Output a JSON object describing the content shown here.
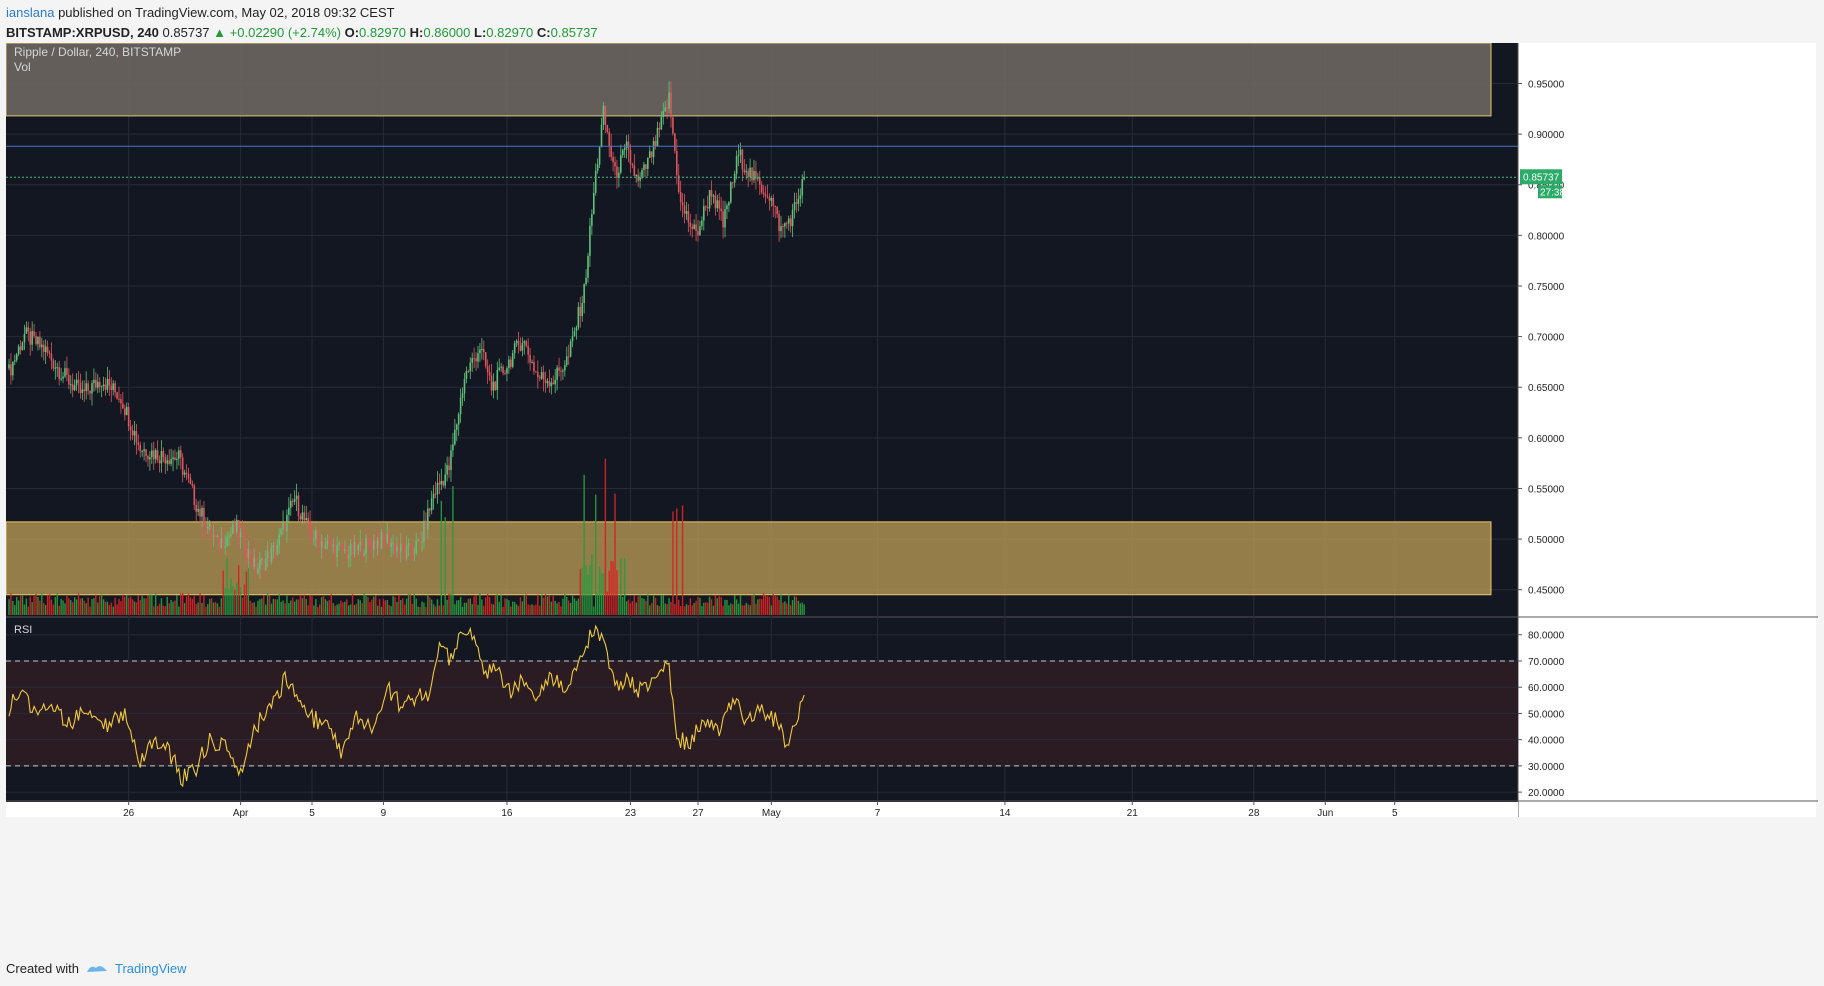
{
  "publisher": {
    "user": "ianslana",
    "text": "published on TradingView.com, May 02, 2018 09:32 CEST"
  },
  "ticker_line": {
    "symbol": "BITSTAMP:XRPUSD, 240",
    "last": "0.85737",
    "change": "+0.02290 (+2.74%)",
    "open_label": "O:",
    "open": "0.82970",
    "high_label": "H:",
    "high": "0.86000",
    "low_label": "L:",
    "low": "0.82970",
    "close_label": "C:",
    "close": "0.85737"
  },
  "chart_data": [
    {
      "type": "candlestick",
      "title": "Ripple / Dollar, 240, BITSTAMP",
      "subtitle": "Vol",
      "x_tick_labels": [
        "26",
        "Apr",
        "5",
        "9",
        "16",
        "23",
        "27",
        "May",
        "7",
        "14",
        "21",
        "28",
        "Jun",
        "5"
      ],
      "y_tick_labels": [
        "0.95000",
        "0.90000",
        "0.85000",
        "0.80000",
        "0.75000",
        "0.70000",
        "0.65000",
        "0.60000",
        "0.55000",
        "0.50000",
        "0.45000"
      ],
      "ylim": [
        0.425,
        0.99
      ],
      "last_price_label": "0.85737",
      "countdown_label": "27:38",
      "horizontal_line": 0.888,
      "zones": [
        {
          "name": "resistance",
          "from": 0.918,
          "to": 0.99,
          "color": "#6a6560"
        },
        {
          "name": "support",
          "from": 0.445,
          "to": 0.517,
          "color": "#b89a55"
        }
      ],
      "price_anchors": [
        [
          0,
          0.665
        ],
        [
          8,
          0.702
        ],
        [
          18,
          0.688
        ],
        [
          28,
          0.662
        ],
        [
          38,
          0.643
        ],
        [
          48,
          0.658
        ],
        [
          58,
          0.64
        ],
        [
          68,
          0.59
        ],
        [
          78,
          0.583
        ],
        [
          88,
          0.58
        ],
        [
          98,
          0.53
        ],
        [
          108,
          0.495
        ],
        [
          118,
          0.51
        ],
        [
          128,
          0.47
        ],
        [
          138,
          0.49
        ],
        [
          148,
          0.54
        ],
        [
          156,
          0.505
        ],
        [
          166,
          0.493
        ],
        [
          176,
          0.486
        ],
        [
          186,
          0.495
        ],
        [
          196,
          0.5
        ],
        [
          205,
          0.485
        ],
        [
          213,
          0.495
        ],
        [
          220,
          0.545
        ],
        [
          228,
          0.57
        ],
        [
          236,
          0.66
        ],
        [
          244,
          0.69
        ],
        [
          250,
          0.65
        ],
        [
          258,
          0.672
        ],
        [
          266,
          0.698
        ],
        [
          274,
          0.66
        ],
        [
          282,
          0.657
        ],
        [
          290,
          0.68
        ],
        [
          298,
          0.745
        ],
        [
          304,
          0.86
        ],
        [
          308,
          0.92
        ],
        [
          314,
          0.86
        ],
        [
          320,
          0.885
        ],
        [
          326,
          0.85
        ],
        [
          334,
          0.885
        ],
        [
          342,
          0.935
        ],
        [
          348,
          0.83
        ],
        [
          356,
          0.8
        ],
        [
          364,
          0.845
        ],
        [
          370,
          0.81
        ],
        [
          378,
          0.88
        ],
        [
          386,
          0.855
        ],
        [
          394,
          0.84
        ],
        [
          400,
          0.805
        ],
        [
          406,
          0.82
        ],
        [
          412,
          0.857
        ]
      ],
      "rsi": {
        "label": "RSI",
        "levels": [
          30,
          70
        ],
        "y_tick_labels": [
          "80.0000",
          "70.0000",
          "60.0000",
          "50.0000",
          "40.0000",
          "30.0000",
          "20.0000"
        ],
        "ylim": [
          17,
          86
        ],
        "anchors": [
          [
            0,
            52
          ],
          [
            6,
            58
          ],
          [
            14,
            50
          ],
          [
            22,
            54
          ],
          [
            30,
            45
          ],
          [
            40,
            52
          ],
          [
            50,
            46
          ],
          [
            60,
            50
          ],
          [
            68,
            30
          ],
          [
            75,
            40
          ],
          [
            82,
            37
          ],
          [
            90,
            25
          ],
          [
            96,
            28
          ],
          [
            104,
            40
          ],
          [
            112,
            38
          ],
          [
            120,
            27
          ],
          [
            128,
            45
          ],
          [
            136,
            53
          ],
          [
            144,
            64
          ],
          [
            150,
            52
          ],
          [
            158,
            48
          ],
          [
            166,
            46
          ],
          [
            172,
            35
          ],
          [
            180,
            50
          ],
          [
            188,
            45
          ],
          [
            196,
            60
          ],
          [
            204,
            52
          ],
          [
            212,
            57
          ],
          [
            218,
            55
          ],
          [
            223,
            78
          ],
          [
            228,
            70
          ],
          [
            234,
            82
          ],
          [
            240,
            79
          ],
          [
            246,
            65
          ],
          [
            252,
            66
          ],
          [
            260,
            58
          ],
          [
            266,
            62
          ],
          [
            272,
            56
          ],
          [
            280,
            65
          ],
          [
            288,
            60
          ],
          [
            296,
            72
          ],
          [
            303,
            83
          ],
          [
            309,
            76
          ],
          [
            314,
            61
          ],
          [
            320,
            63
          ],
          [
            326,
            58
          ],
          [
            334,
            62
          ],
          [
            342,
            68
          ],
          [
            346,
            41
          ],
          [
            352,
            39
          ],
          [
            360,
            46
          ],
          [
            368,
            44
          ],
          [
            376,
            55
          ],
          [
            382,
            48
          ],
          [
            390,
            52
          ],
          [
            398,
            47
          ],
          [
            402,
            38
          ],
          [
            408,
            46
          ],
          [
            412,
            56
          ]
        ]
      },
      "x_time_axis": {
        "first_bar_label": "26",
        "note": "bars at 4h intervals, one per 240 min"
      }
    }
  ],
  "footer": {
    "created_with": "Created with",
    "brand": "TradingView"
  },
  "colors": {
    "background": "#131722",
    "up": "#5fc279",
    "down": "#e0555e",
    "rsi_line": "#f0c93a",
    "rsi_band": "#2b1c24",
    "last_price_badge": "#2bab67"
  }
}
